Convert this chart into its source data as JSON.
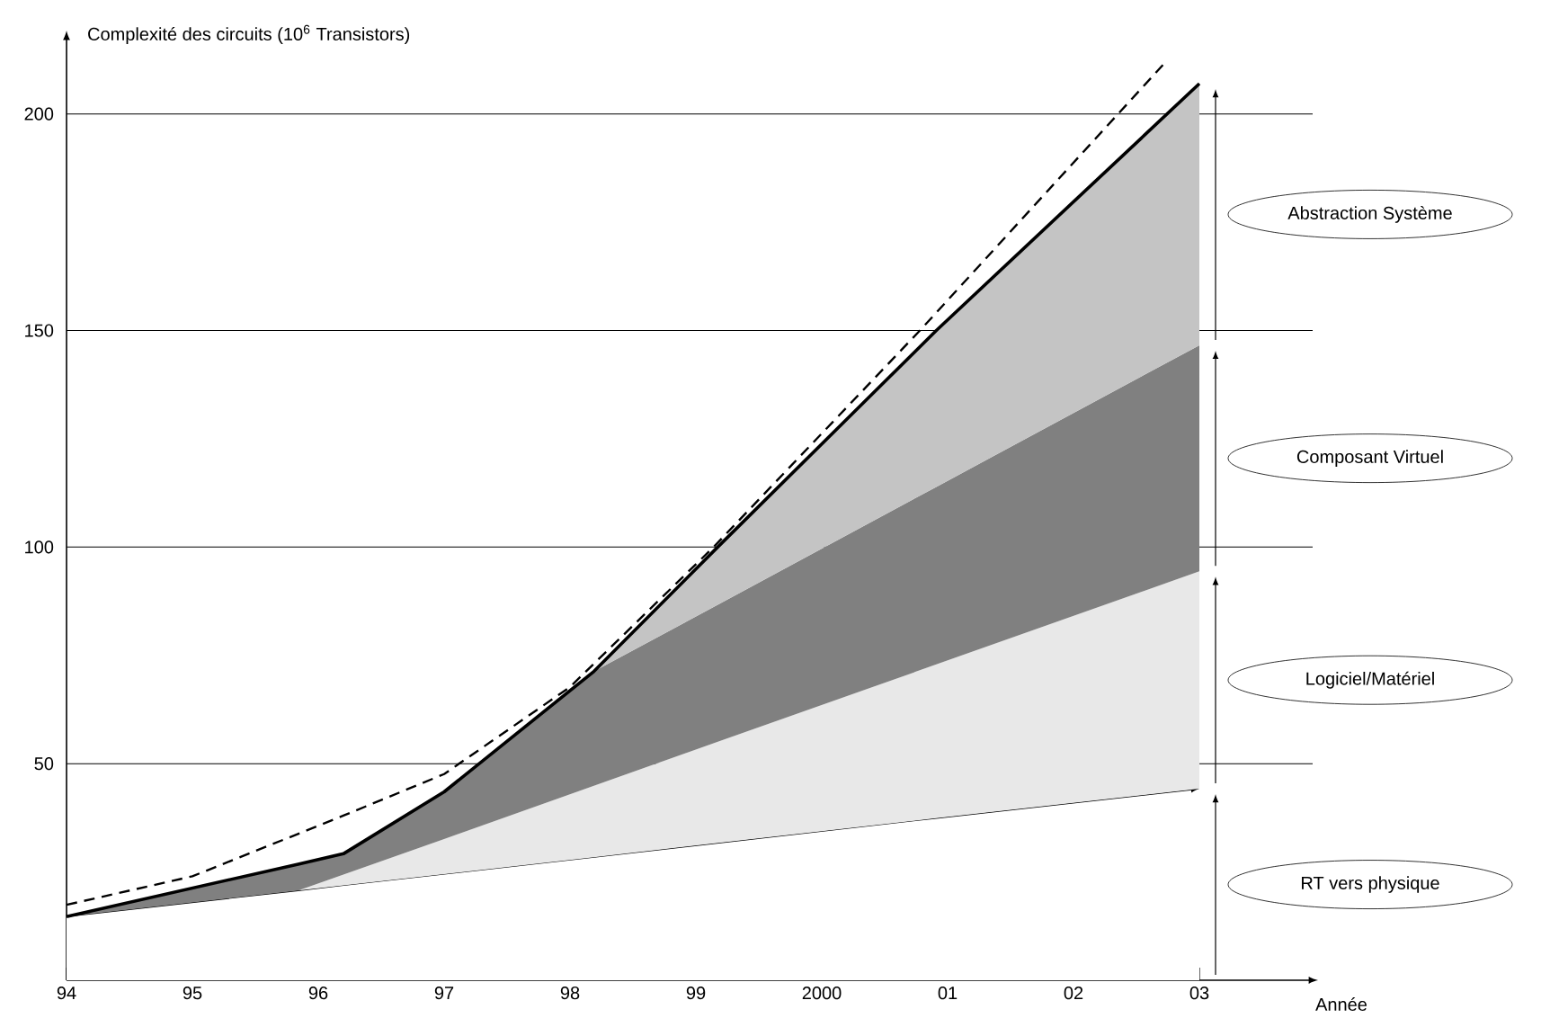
{
  "chart_data": {
    "type": "area",
    "stacked": true,
    "xlabel": "Année",
    "ylabel": "Complexité des circuits (10$^{6}$ Transistors)",
    "x": [
      1994,
      1995.84,
      1996.2,
      1997,
      1998.19,
      1999.18,
      2000.91,
      2003
    ],
    "xlim": [
      1994,
      2003.9
    ],
    "ylim": [
      0,
      218
    ],
    "xticks": [
      {
        "value": 1994,
        "label": "94"
      },
      {
        "value": 1995,
        "label": "95"
      },
      {
        "value": 1996,
        "label": "96"
      },
      {
        "value": 1997,
        "label": "97"
      },
      {
        "value": 1998,
        "label": "98"
      },
      {
        "value": 1999,
        "label": "99"
      },
      2000,
      {
        "value": 2001,
        "label": "01"
      },
      {
        "value": 2002,
        "label": "02"
      },
      {
        "value": 2003,
        "label": "03"
      }
    ],
    "yticks": [
      50,
      100,
      150,
      200
    ],
    "grid": "y",
    "series": [
      {
        "name": "RT vers physique",
        "color": "#ffffff",
        "values": [
          14.7,
          20.7,
          21.9,
          24.5,
          28.4,
          31.7,
          37.4,
          44.2
        ]
      },
      {
        "name": "Logiciel/Matériel",
        "color": "#e8e8e8",
        "values": [
          0,
          0,
          2.5,
          8.1,
          16.5,
          23.4,
          35.5,
          50.2
        ]
      },
      {
        "name": "Composant Virtuel",
        "color": "#808080",
        "values": [
          0,
          6.1,
          4.8,
          10.9,
          26.4,
          31.7,
          41.0,
          52.2
        ]
      },
      {
        "name": "Abstraction Système",
        "color": "#c4c4c4",
        "values": [
          0,
          0,
          0,
          0,
          0,
          13.4,
          36.1,
          60.4
        ]
      },
      {
        "type": "line",
        "color": "#000000",
        "line_style": "dashed",
        "x": [
          1994,
          1995,
          1996.2,
          1997,
          1998,
          1999.14,
          2000.78,
          2002.71
        ],
        "values": [
          17.4,
          24,
          38,
          47.6,
          67.7,
          100,
          150,
          211.3
        ]
      }
    ]
  }
}
